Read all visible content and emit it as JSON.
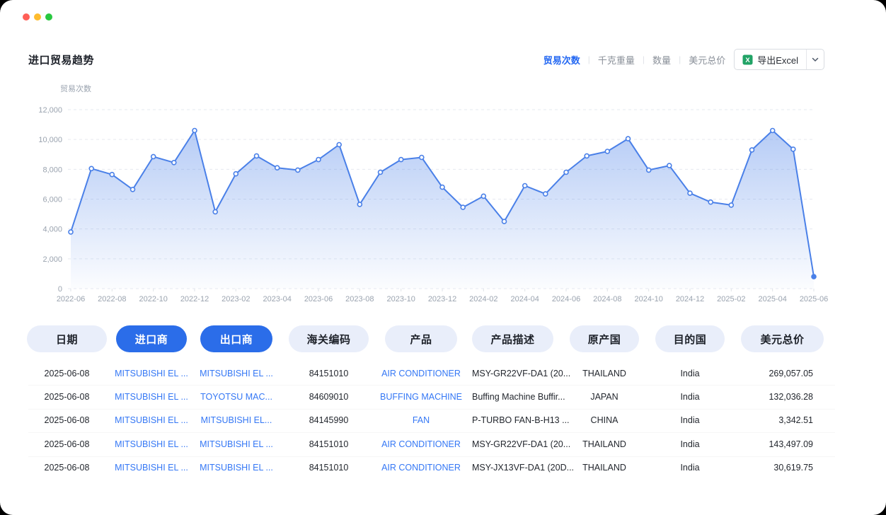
{
  "window": {
    "dots": [
      {
        "name": "close",
        "color": "#ff5f57"
      },
      {
        "name": "minimize",
        "color": "#febc2e"
      },
      {
        "name": "zoom",
        "color": "#28c840"
      }
    ]
  },
  "header": {
    "title": "进口贸易趋势"
  },
  "metric_tabs": [
    {
      "label": "贸易次数",
      "active": true
    },
    {
      "label": "千克重量",
      "active": false
    },
    {
      "label": "数量",
      "active": false
    },
    {
      "label": "美元总价",
      "active": false
    }
  ],
  "export": {
    "label": "导出Excel",
    "icon": "excel-icon",
    "caret_icon": "chevron-down-icon"
  },
  "colors": {
    "accent_blue": "#2b6de9",
    "link_blue": "#3477f5",
    "chart_line": "#4a80e8",
    "pill_light_bg": "#e9eefa",
    "axis_text": "#9aa3af",
    "grid_line": "#e6e9ef"
  },
  "chart_data": {
    "type": "area",
    "title": "进口贸易趋势",
    "ylabel": "贸易次数",
    "xlabel": "",
    "ylim": [
      0,
      12000
    ],
    "yticks": [
      0,
      2000,
      4000,
      6000,
      8000,
      10000,
      12000
    ],
    "ytick_labels": [
      "0",
      "2,000",
      "4,000",
      "6,000",
      "8,000",
      "10,000",
      "12,000"
    ],
    "grid": "horizontal-dashed",
    "legend": "none",
    "xtick_every": 2,
    "x": [
      "2022-06",
      "2022-07",
      "2022-08",
      "2022-09",
      "2022-10",
      "2022-11",
      "2022-12",
      "2023-01",
      "2023-02",
      "2023-03",
      "2023-04",
      "2023-05",
      "2023-06",
      "2023-07",
      "2023-08",
      "2023-09",
      "2023-10",
      "2023-11",
      "2023-12",
      "2024-01",
      "2024-02",
      "2024-03",
      "2024-04",
      "2024-05",
      "2024-06",
      "2024-07",
      "2024-08",
      "2024-09",
      "2024-10",
      "2024-11",
      "2024-12",
      "2025-01",
      "2025-02",
      "2025-03",
      "2025-04",
      "2025-05",
      "2025-06"
    ],
    "values": [
      3800,
      8050,
      7650,
      6650,
      8850,
      8450,
      10600,
      5150,
      7700,
      8900,
      8100,
      7950,
      8650,
      9650,
      5650,
      7800,
      8650,
      8800,
      6800,
      5450,
      6200,
      4500,
      6900,
      6350,
      7800,
      8900,
      9200,
      10050,
      7950,
      8250,
      6400,
      5800,
      5600,
      9300,
      10600,
      9350,
      800
    ]
  },
  "table": {
    "columns": [
      {
        "field": "date",
        "label": "日期",
        "style": "light"
      },
      {
        "field": "importer",
        "label": "进口商",
        "style": "primary"
      },
      {
        "field": "exporter",
        "label": "出口商",
        "style": "primary"
      },
      {
        "field": "hs_code",
        "label": "海关编码",
        "style": "light"
      },
      {
        "field": "product",
        "label": "产品",
        "style": "light"
      },
      {
        "field": "description",
        "label": "产品描述",
        "style": "light"
      },
      {
        "field": "origin",
        "label": "原产国",
        "style": "light"
      },
      {
        "field": "destination",
        "label": "目的国",
        "style": "light"
      },
      {
        "field": "price",
        "label": "美元总价",
        "style": "light"
      }
    ],
    "rows": [
      {
        "date": "2025-06-08",
        "importer": "MITSUBISHI EL ...",
        "exporter": "MITSUBISHI EL ...",
        "hs_code": "84151010",
        "product": "AIR CONDITIONER",
        "description": "MSY-GR22VF-DA1 (20...",
        "origin": "THAILAND",
        "destination": "India",
        "price": "269,057.05"
      },
      {
        "date": "2025-06-08",
        "importer": "MITSUBISHI EL ...",
        "exporter": "TOYOTSU MAC...",
        "hs_code": "84609010",
        "product": "BUFFING MACHINE",
        "description": "Buffing Machine Buffir...",
        "origin": "JAPAN",
        "destination": "India",
        "price": "132,036.28"
      },
      {
        "date": "2025-06-08",
        "importer": "MITSUBISHI EL ...",
        "exporter": "MITSUBISHI EL...",
        "hs_code": "84145990",
        "product": "FAN",
        "description": "P-TURBO FAN-B-H13 ...",
        "origin": "CHINA",
        "destination": "India",
        "price": "3,342.51"
      },
      {
        "date": "2025-06-08",
        "importer": "MITSUBISHI EL ...",
        "exporter": "MITSUBISHI EL ...",
        "hs_code": "84151010",
        "product": "AIR CONDITIONER",
        "description": "MSY-GR22VF-DA1 (20...",
        "origin": "THAILAND",
        "destination": "India",
        "price": "143,497.09"
      },
      {
        "date": "2025-06-08",
        "importer": "MITSUBISHI EL ...",
        "exporter": "MITSUBISHI EL ...",
        "hs_code": "84151010",
        "product": "AIR CONDITIONER",
        "description": "MSY-JX13VF-DA1 (20D...",
        "origin": "THAILAND",
        "destination": "India",
        "price": "30,619.75"
      }
    ]
  }
}
